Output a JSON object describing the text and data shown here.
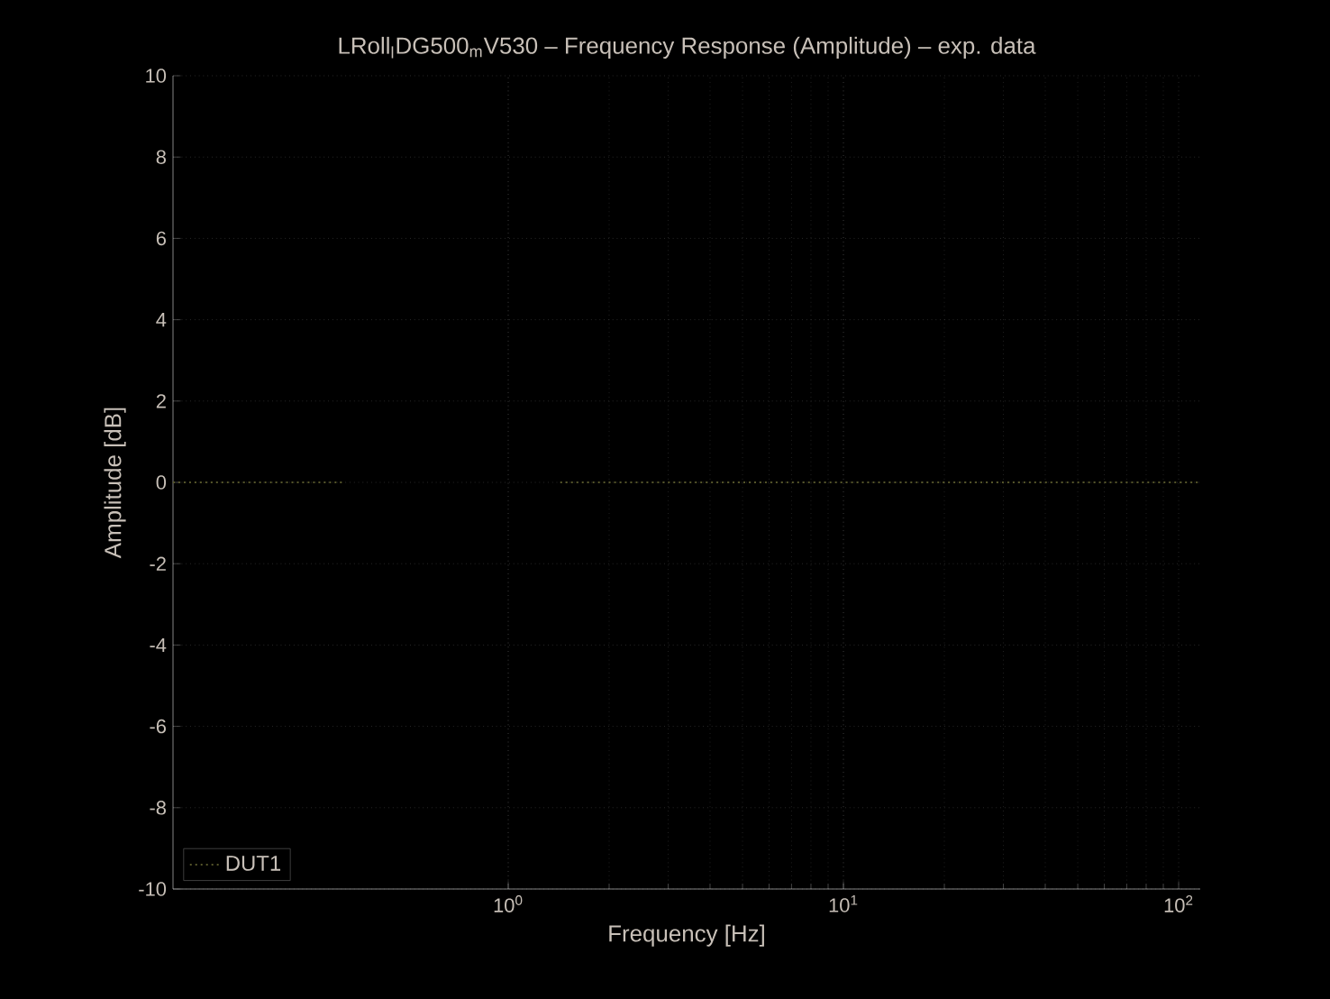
{
  "chart_data": {
    "type": "line",
    "title": "LRoll$_{l}$DG500$_{m}$V530 – Frequency Response (Amplitude) – exp. data",
    "xlabel": "Frequency [Hz]",
    "ylabel": "Amplitude [dB]",
    "x": [
      0.1,
      0.32,
      0.7,
      1.43,
      116
    ],
    "series": [
      {
        "name": "DUT1",
        "color": "#55552a",
        "values": [
          0,
          0,
          null,
          0,
          0
        ]
      }
    ],
    "xlim": [
      0.1,
      116
    ],
    "ylim": [
      -10,
      10
    ],
    "xticks": [
      {
        "value": 1,
        "label": "10$^{0}$"
      },
      {
        "value": 10,
        "label": "10$^{1}$"
      },
      {
        "value": 100,
        "label": "10$^{2}$"
      }
    ],
    "yticks": [
      -10,
      -8,
      -6,
      -4,
      -2,
      0,
      2,
      4,
      6,
      8,
      10
    ],
    "log": "x",
    "grid": true,
    "legend": "bottom left",
    "line_style": "dotted"
  }
}
